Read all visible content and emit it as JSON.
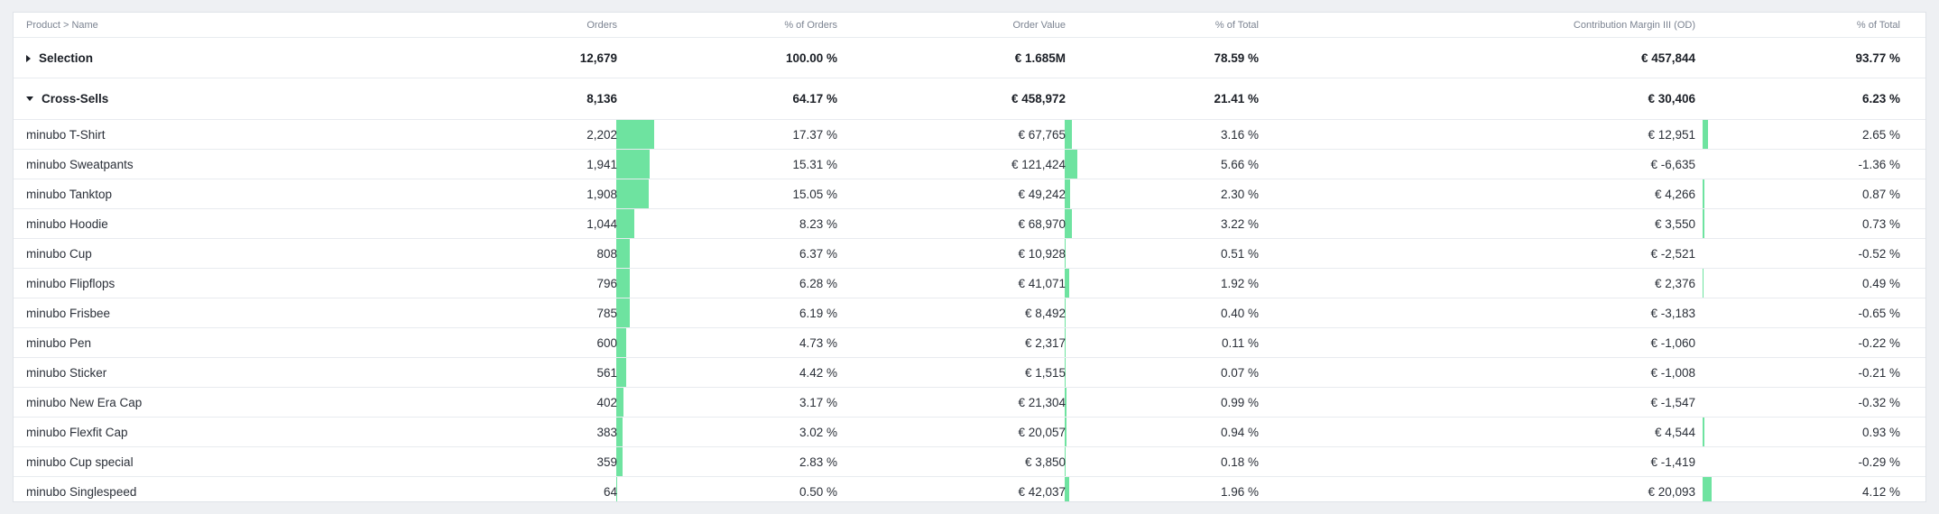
{
  "header": {
    "name": "Product > Name",
    "orders": "Orders",
    "pct_orders": "% of Orders",
    "order_value": "Order Value",
    "pct_total_ov": "% of Total",
    "cm3": "Contribution Margin III (OD)",
    "pct_total_cm": "% of Total"
  },
  "groups": [
    {
      "name": "Selection",
      "orders": "12,679",
      "pct_orders": "100.00 %",
      "order_value": "€ 1.685M",
      "pct_total_ov": "78.59 %",
      "cm3": "€ 457,844",
      "pct_total_cm": "93.77 %"
    },
    {
      "name": "Cross-Sells",
      "orders": "8,136",
      "pct_orders": "64.17 %",
      "order_value": "€ 458,972",
      "pct_total_ov": "21.41 %",
      "cm3": "€ 30,406",
      "pct_total_cm": "6.23 %"
    }
  ],
  "rows": [
    {
      "name": "minubo T-Shirt",
      "orders": "2,202",
      "pct_orders": "17.37 %",
      "order_value": "€ 67,765",
      "pct_total_ov": "3.16 %",
      "cm3": "€ 12,951",
      "pct_total_cm": "2.65 %",
      "orders_share": 0.1737,
      "ov_share": 0.0316,
      "cm_share": 0.0265
    },
    {
      "name": "minubo Sweatpants",
      "orders": "1,941",
      "pct_orders": "15.31 %",
      "order_value": "€ 121,424",
      "pct_total_ov": "5.66 %",
      "cm3": "€ -6,635",
      "pct_total_cm": "-1.36 %",
      "orders_share": 0.1531,
      "ov_share": 0.0566,
      "cm_share": -0.0136
    },
    {
      "name": "minubo Tanktop",
      "orders": "1,908",
      "pct_orders": "15.05 %",
      "order_value": "€ 49,242",
      "pct_total_ov": "2.30 %",
      "cm3": "€ 4,266",
      "pct_total_cm": "0.87 %",
      "orders_share": 0.1505,
      "ov_share": 0.023,
      "cm_share": 0.0087
    },
    {
      "name": "minubo Hoodie",
      "orders": "1,044",
      "pct_orders": "8.23 %",
      "order_value": "€ 68,970",
      "pct_total_ov": "3.22 %",
      "cm3": "€ 3,550",
      "pct_total_cm": "0.73 %",
      "orders_share": 0.0823,
      "ov_share": 0.0322,
      "cm_share": 0.0073
    },
    {
      "name": "minubo Cup",
      "orders": "808",
      "pct_orders": "6.37 %",
      "order_value": "€ 10,928",
      "pct_total_ov": "0.51 %",
      "cm3": "€ -2,521",
      "pct_total_cm": "-0.52 %",
      "orders_share": 0.0637,
      "ov_share": 0.0051,
      "cm_share": -0.0052
    },
    {
      "name": "minubo Flipflops",
      "orders": "796",
      "pct_orders": "6.28 %",
      "order_value": "€ 41,071",
      "pct_total_ov": "1.92 %",
      "cm3": "€ 2,376",
      "pct_total_cm": "0.49 %",
      "orders_share": 0.0628,
      "ov_share": 0.0192,
      "cm_share": 0.0049
    },
    {
      "name": "minubo Frisbee",
      "orders": "785",
      "pct_orders": "6.19 %",
      "order_value": "€ 8,492",
      "pct_total_ov": "0.40 %",
      "cm3": "€ -3,183",
      "pct_total_cm": "-0.65 %",
      "orders_share": 0.0619,
      "ov_share": 0.004,
      "cm_share": -0.0065
    },
    {
      "name": "minubo Pen",
      "orders": "600",
      "pct_orders": "4.73 %",
      "order_value": "€ 2,317",
      "pct_total_ov": "0.11 %",
      "cm3": "€ -1,060",
      "pct_total_cm": "-0.22 %",
      "orders_share": 0.0473,
      "ov_share": 0.0011,
      "cm_share": -0.0022
    },
    {
      "name": "minubo Sticker",
      "orders": "561",
      "pct_orders": "4.42 %",
      "order_value": "€ 1,515",
      "pct_total_ov": "0.07 %",
      "cm3": "€ -1,008",
      "pct_total_cm": "-0.21 %",
      "orders_share": 0.0442,
      "ov_share": 0.0007,
      "cm_share": -0.0021
    },
    {
      "name": "minubo New Era Cap",
      "orders": "402",
      "pct_orders": "3.17 %",
      "order_value": "€ 21,304",
      "pct_total_ov": "0.99 %",
      "cm3": "€ -1,547",
      "pct_total_cm": "-0.32 %",
      "orders_share": 0.0317,
      "ov_share": 0.0099,
      "cm_share": -0.0032
    },
    {
      "name": "minubo Flexfit Cap",
      "orders": "383",
      "pct_orders": "3.02 %",
      "order_value": "€ 20,057",
      "pct_total_ov": "0.94 %",
      "cm3": "€ 4,544",
      "pct_total_cm": "0.93 %",
      "orders_share": 0.0302,
      "ov_share": 0.0094,
      "cm_share": 0.0093
    },
    {
      "name": "minubo Cup special",
      "orders": "359",
      "pct_orders": "2.83 %",
      "order_value": "€ 3,850",
      "pct_total_ov": "0.18 %",
      "cm3": "€ -1,419",
      "pct_total_cm": "-0.29 %",
      "orders_share": 0.0283,
      "ov_share": 0.0018,
      "cm_share": -0.0029
    },
    {
      "name": "minubo Singlespeed",
      "orders": "64",
      "pct_orders": "0.50 %",
      "order_value": "€ 42,037",
      "pct_total_ov": "1.96 %",
      "cm3": "€ 20,093",
      "pct_total_cm": "4.12 %",
      "orders_share": 0.005,
      "ov_share": 0.0196,
      "cm_share": 0.0412
    }
  ],
  "colors": {
    "bar": "#6ee3a0"
  }
}
